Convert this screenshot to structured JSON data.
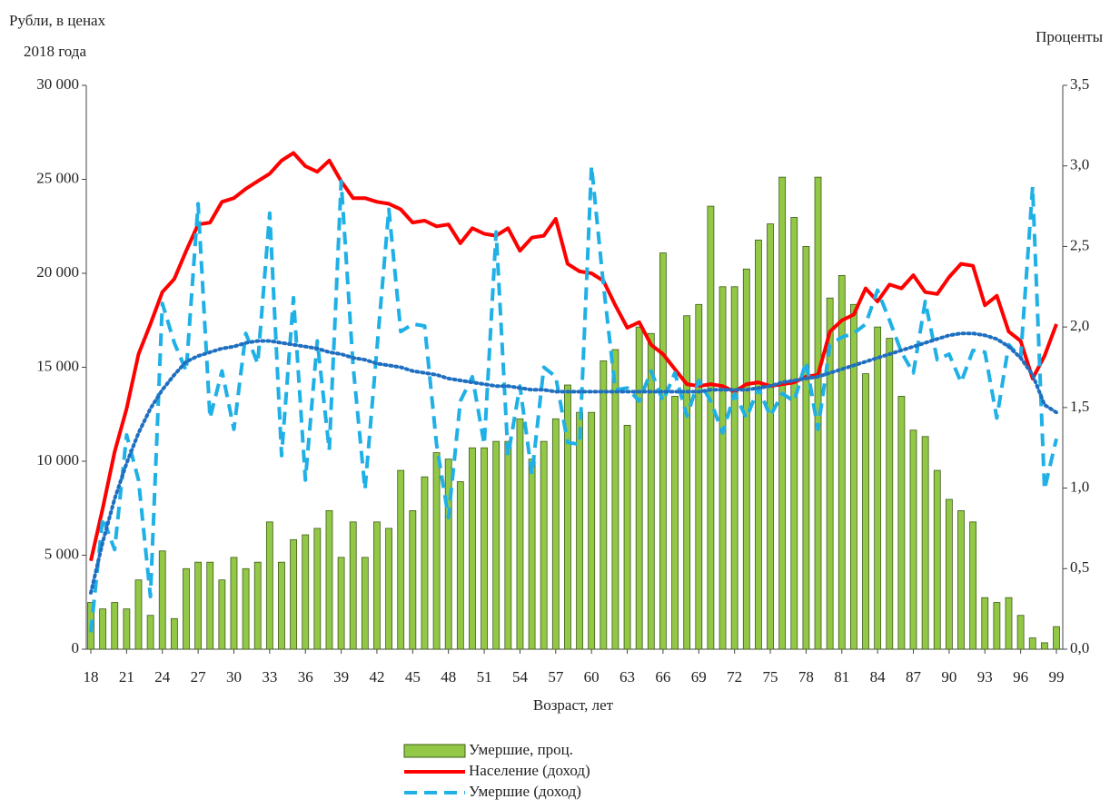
{
  "chart_data": {
    "type": "combo",
    "y_label": [
      "Рубли, в ценах",
      "2018 года"
    ],
    "y2_label": "Проценты",
    "x_label": "Возраст, лет",
    "categories": [
      18,
      null,
      null,
      21,
      null,
      null,
      24,
      null,
      null,
      27,
      null,
      null,
      30,
      null,
      null,
      33,
      null,
      null,
      36,
      null,
      null,
      39,
      null,
      null,
      42,
      null,
      null,
      45,
      null,
      null,
      48,
      null,
      null,
      51,
      null,
      null,
      54,
      null,
      null,
      57,
      null,
      null,
      60,
      null,
      null,
      63,
      null,
      null,
      66,
      null,
      null,
      69,
      null,
      null,
      72,
      null,
      null,
      75,
      null,
      null,
      78,
      null,
      null,
      81,
      null,
      null,
      84,
      null,
      null,
      87,
      null,
      null,
      90,
      null,
      null,
      93,
      null,
      null,
      96,
      null,
      null,
      99
    ],
    "ylim": [
      0,
      30000
    ],
    "yticks": [
      0,
      {
        "value": 5000,
        "label": "5 000"
      },
      {
        "value": 10000,
        "label": "10 000"
      },
      {
        "value": 15000,
        "label": "15 000"
      },
      {
        "value": 20000,
        "label": "20 000"
      },
      {
        "value": 25000,
        "label": "25 000"
      },
      {
        "value": 30000,
        "label": "30 000"
      }
    ],
    "y2lim": [
      0,
      3.5
    ],
    "y2ticks": [
      {
        "value": 0,
        "label": "0,0"
      },
      {
        "value": 0.5,
        "label": "0,5"
      },
      {
        "value": 1,
        "label": "1,0"
      },
      {
        "value": 1.5,
        "label": "1,5"
      },
      {
        "value": 2,
        "label": "2,0"
      },
      {
        "value": 2.5,
        "label": "2,5"
      },
      {
        "value": 3,
        "label": "3,0"
      },
      {
        "value": 3.5,
        "label": "3,5"
      }
    ],
    "series": [
      {
        "name": "Умершие, проц.",
        "type": "bar",
        "axis": "y2",
        "color": "#92c846",
        "values": [
          0.29,
          0.25,
          0.29,
          0.25,
          0.43,
          0.21,
          0.61,
          0.19,
          0.5,
          0.54,
          0.54,
          0.43,
          0.57,
          0.5,
          0.54,
          0.79,
          0.54,
          0.68,
          0.71,
          0.75,
          0.86,
          0.57,
          0.79,
          0.57,
          0.79,
          0.75,
          1.11,
          0.86,
          1.07,
          1.22,
          1.18,
          1.04,
          1.25,
          1.25,
          1.29,
          1.29,
          1.43,
          1.18,
          1.29,
          1.43,
          1.64,
          1.47,
          1.47,
          1.79,
          1.86,
          1.39,
          2.0,
          1.96,
          2.46,
          1.57,
          2.07,
          2.14,
          2.75,
          2.25,
          2.25,
          2.36,
          2.54,
          2.64,
          2.93,
          2.68,
          2.5,
          2.93,
          2.18,
          2.32,
          2.14,
          1.71,
          2.0,
          1.93,
          1.57,
          1.36,
          1.32,
          1.11,
          0.93,
          0.86,
          0.79,
          0.32,
          0.29,
          0.32,
          0.21,
          0.07,
          0.04,
          0.14
        ]
      },
      {
        "name": "Население (доход)",
        "type": "line",
        "dash": "solid",
        "color": "#ff0000",
        "values": [
          4700,
          7500,
          10500,
          12800,
          15700,
          17300,
          19000,
          19700,
          21200,
          22600,
          22700,
          23800,
          24000,
          24500,
          24900,
          25300,
          26000,
          26400,
          25700,
          25400,
          26000,
          24900,
          24000,
          24000,
          23800,
          23700,
          23400,
          22700,
          22800,
          22500,
          22600,
          21600,
          22400,
          22100,
          22000,
          22400,
          21200,
          21900,
          22000,
          22900,
          20500,
          20100,
          20000,
          19600,
          18300,
          17100,
          17400,
          16200,
          15700,
          14900,
          14100,
          14000,
          14100,
          14000,
          13700,
          14100,
          14200,
          14000,
          14100,
          14200,
          14500,
          14600,
          16900,
          17500,
          17800,
          19200,
          18500,
          19400,
          19200,
          19900,
          19000,
          18900,
          19800,
          20500,
          20400,
          18300,
          18800,
          16900,
          16400,
          14400,
          15600,
          17300
        ]
      },
      {
        "name": "Умершие (доход)",
        "type": "line",
        "dash": "dashed",
        "color": "#1fb0e6",
        "values": [
          900,
          7000,
          5300,
          11400,
          9000,
          2800,
          18400,
          16300,
          14800,
          23700,
          12300,
          14800,
          11700,
          16800,
          15200,
          23200,
          10300,
          18700,
          9000,
          16400,
          10600,
          24900,
          15100,
          8500,
          16000,
          23400,
          16900,
          17300,
          17200,
          10900,
          7000,
          13200,
          14500,
          10900,
          22200,
          10300,
          14000,
          9300,
          15000,
          14500,
          11000,
          10900,
          25700,
          19400,
          13800,
          13900,
          13200,
          14800,
          13200,
          14700,
          12400,
          14300,
          13200,
          11500,
          13600,
          12300,
          13900,
          12400,
          13600,
          13200,
          15300,
          11700,
          16200,
          16600,
          16800,
          17300,
          19100,
          17500,
          15800,
          14700,
          18500,
          15400,
          15700,
          14200,
          15900,
          15800,
          12300,
          16200,
          15500,
          24600,
          8500,
          11200
        ]
      },
      {
        "type": "line",
        "dash": "dotted",
        "color": "#1f6fc0",
        "values": [
          3000,
          5700,
          8000,
          9900,
          11500,
          12800,
          13800,
          14600,
          15300,
          15600,
          15800,
          16000,
          16100,
          16300,
          16400,
          16400,
          16300,
          16200,
          16100,
          16000,
          15800,
          15700,
          15500,
          15400,
          15200,
          15100,
          15000,
          14800,
          14700,
          14600,
          14400,
          14300,
          14200,
          14100,
          14000,
          14000,
          13900,
          13800,
          13800,
          13700,
          13700,
          13700,
          13700,
          13700,
          13700,
          13700,
          13700,
          13700,
          13700,
          13700,
          13700,
          13700,
          13800,
          13800,
          13800,
          13800,
          13900,
          14000,
          14200,
          14300,
          14400,
          14500,
          14700,
          14900,
          15100,
          15300,
          15500,
          15700,
          15900,
          16100,
          16300,
          16500,
          16700,
          16800,
          16800,
          16700,
          16500,
          16100,
          15500,
          14600,
          13000,
          12600
        ]
      }
    ]
  }
}
